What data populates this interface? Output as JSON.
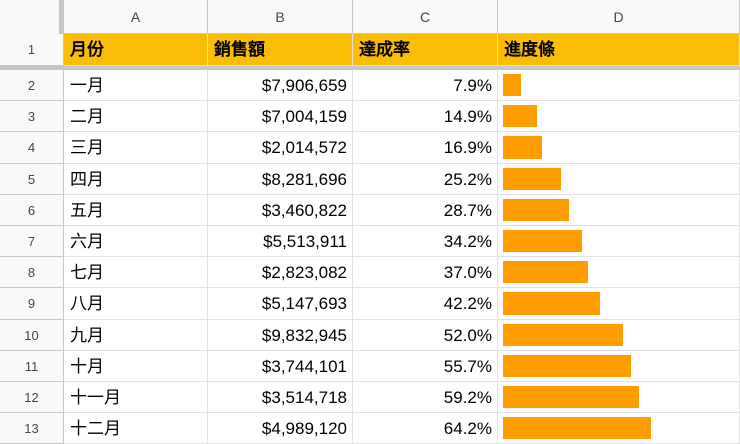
{
  "columns": [
    "A",
    "B",
    "C",
    "D"
  ],
  "header_row_number": "1",
  "headers": {
    "month": "月份",
    "sales": "銷售額",
    "rate": "達成率",
    "progress": "進度條"
  },
  "colors": {
    "header_fill": "#fbbc04",
    "bar_fill": "#ff9d00",
    "grid_line": "#e1e1e1",
    "header_bg": "#f8f9fa"
  },
  "rows": [
    {
      "row": "2",
      "month": "一月",
      "sales": "$7,906,659",
      "rate": "7.9%",
      "progress": 0.079
    },
    {
      "row": "3",
      "month": "二月",
      "sales": "$7,004,159",
      "rate": "14.9%",
      "progress": 0.149
    },
    {
      "row": "4",
      "month": "三月",
      "sales": "$2,014,572",
      "rate": "16.9%",
      "progress": 0.169
    },
    {
      "row": "5",
      "month": "四月",
      "sales": "$8,281,696",
      "rate": "25.2%",
      "progress": 0.252
    },
    {
      "row": "6",
      "month": "五月",
      "sales": "$3,460,822",
      "rate": "28.7%",
      "progress": 0.287
    },
    {
      "row": "7",
      "month": "六月",
      "sales": "$5,513,911",
      "rate": "34.2%",
      "progress": 0.342
    },
    {
      "row": "8",
      "month": "七月",
      "sales": "$2,823,082",
      "rate": "37.0%",
      "progress": 0.37
    },
    {
      "row": "9",
      "month": "八月",
      "sales": "$5,147,693",
      "rate": "42.2%",
      "progress": 0.422
    },
    {
      "row": "10",
      "month": "九月",
      "sales": "$9,832,945",
      "rate": "52.0%",
      "progress": 0.52
    },
    {
      "row": "11",
      "month": "十月",
      "sales": "$3,744,101",
      "rate": "55.7%",
      "progress": 0.557
    },
    {
      "row": "12",
      "month": "十一月",
      "sales": "$3,514,718",
      "rate": "59.2%",
      "progress": 0.592
    },
    {
      "row": "13",
      "month": "十二月",
      "sales": "$4,989,120",
      "rate": "64.2%",
      "progress": 0.642
    }
  ]
}
